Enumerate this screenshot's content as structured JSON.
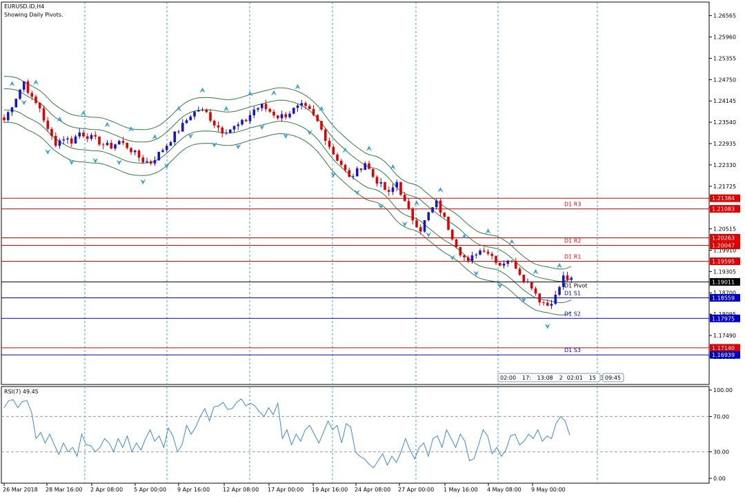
{
  "header": {
    "title": "EURUSD.ID,H4",
    "subtitle": "Showing Daily Pivots."
  },
  "colors": {
    "bull": "#1414d2",
    "bear": "#e00000",
    "band": "#2e7d3a",
    "signal": "#3aa0e0",
    "rsi": "#3b88d8",
    "resistance": "#e00000",
    "support": "#0000c8",
    "pivot": "#000000"
  },
  "chart_data": [
    {
      "type": "candlestick",
      "title": "EURUSD.ID,H4",
      "subtitle": "Showing Daily Pivots.",
      "ylim": [
        1.161,
        1.2695
      ],
      "y_ticks": [
        "1.26565",
        "1.25960",
        "1.25355",
        "1.24750",
        "1.24145",
        "1.23540",
        "1.22935",
        "1.22330",
        "1.21725",
        "1.21125",
        "1.20515",
        "1.19910",
        "1.19305",
        "1.18700",
        "1.18095",
        "1.17490",
        "1.16885"
      ],
      "x_ticks": [
        "26 Mar 2018",
        "28 Mar 16:00",
        "2 Apr 08:00",
        "5 Apr 00:00",
        "9 Apr 16:00",
        "12 Apr 08:00",
        "17 Apr 00:00",
        "19 Apr 16:00",
        "24 Apr 08:00",
        "27 Apr 00:00",
        "1 May 16:00",
        "4 May 08:00",
        "9 May 00:00"
      ],
      "close_path": [
        [
          0,
          1.236
        ],
        [
          3,
          1.2425
        ],
        [
          5,
          1.247
        ],
        [
          7,
          1.242
        ],
        [
          9,
          1.2395
        ],
        [
          11,
          1.233
        ],
        [
          13,
          1.2295
        ],
        [
          15,
          1.231
        ],
        [
          17,
          1.23
        ],
        [
          19,
          1.2325
        ],
        [
          21,
          1.2315
        ],
        [
          23,
          1.2305
        ],
        [
          25,
          1.229
        ],
        [
          27,
          1.2285
        ],
        [
          29,
          1.23
        ],
        [
          31,
          1.2285
        ],
        [
          33,
          1.2265
        ],
        [
          35,
          1.2245
        ],
        [
          37,
          1.224
        ],
        [
          39,
          1.2265
        ],
        [
          41,
          1.229
        ],
        [
          43,
          1.232
        ],
        [
          45,
          1.2345
        ],
        [
          47,
          1.2375
        ],
        [
          49,
          1.239
        ],
        [
          51,
          1.238
        ],
        [
          53,
          1.235
        ],
        [
          55,
          1.233
        ],
        [
          57,
          1.2335
        ],
        [
          59,
          1.2345
        ],
        [
          61,
          1.236
        ],
        [
          63,
          1.239
        ],
        [
          65,
          1.24
        ],
        [
          67,
          1.2385
        ],
        [
          69,
          1.237
        ],
        [
          71,
          1.2375
        ],
        [
          73,
          1.239
        ],
        [
          75,
          1.24
        ],
        [
          77,
          1.2385
        ],
        [
          79,
          1.2355
        ],
        [
          81,
          1.231
        ],
        [
          83,
          1.2265
        ],
        [
          85,
          1.2235
        ],
        [
          87,
          1.2195
        ],
        [
          89,
          1.2215
        ],
        [
          91,
          1.224
        ],
        [
          93,
          1.22
        ],
        [
          95,
          1.2175
        ],
        [
          97,
          1.215
        ],
        [
          99,
          1.2185
        ],
        [
          101,
          1.2125
        ],
        [
          103,
          1.208
        ],
        [
          105,
          1.205
        ],
        [
          107,
          1.2095
        ],
        [
          109,
          1.2125
        ],
        [
          111,
          1.208
        ],
        [
          113,
          1.203
        ],
        [
          115,
          1.1985
        ],
        [
          117,
          1.1955
        ],
        [
          119,
          1.1985
        ],
        [
          121,
          1.1995
        ],
        [
          123,
          1.1975
        ],
        [
          125,
          1.195
        ],
        [
          127,
          1.1965
        ],
        [
          129,
          1.1945
        ],
        [
          131,
          1.191
        ],
        [
          133,
          1.189
        ],
        [
          135,
          1.185
        ],
        [
          137,
          1.1835
        ],
        [
          139,
          1.186
        ],
        [
          141,
          1.1915
        ],
        [
          143,
          1.1905
        ]
      ]
    },
    {
      "type": "pivot_levels",
      "levels": [
        {
          "name": "D1 R3",
          "value": 1.21083,
          "price_label": "1.21083",
          "kind": "resistance"
        },
        {
          "name": "D1 R2",
          "value": 1.20047,
          "price_label": "1.20047",
          "kind": "resistance"
        },
        {
          "name": "D1 R1",
          "value": 1.19595,
          "price_label": "1.19595",
          "kind": "resistance"
        },
        {
          "name": "D1 Pivot",
          "value": 1.19011,
          "price_label": "1.19011",
          "kind": "pivot"
        },
        {
          "name": "D1 S1",
          "value": 1.18559,
          "price_label": "1.18559",
          "kind": "support"
        },
        {
          "name": "D1 S2",
          "value": 1.17975,
          "price_label": "1.17975",
          "kind": "support"
        },
        {
          "name": "D1 S3",
          "value": 1.16939,
          "price_label": "1.16939",
          "kind": "support"
        }
      ],
      "extra_lines": [
        {
          "value": 1.21384,
          "price_label": "1.21384",
          "kind": "resistance"
        },
        {
          "value": 1.20263,
          "price_label": "1.20263",
          "kind": "resistance"
        },
        {
          "value": 1.1714,
          "price_label": "1.17140",
          "kind": "resistance"
        }
      ]
    },
    {
      "type": "line",
      "title": "RSI(7) 49.45",
      "ylim": [
        0,
        100
      ],
      "y_ticks": [
        "100.00",
        "70.00",
        "30.00",
        "0.00"
      ],
      "levels": [
        70,
        30
      ],
      "series": [
        {
          "name": "RSI(7)",
          "x_step": 2,
          "values": [
            80,
            88,
            89,
            80,
            87,
            88,
            75,
            45,
            52,
            40,
            50,
            38,
            27,
            40,
            30,
            35,
            25,
            50,
            38,
            37,
            30,
            35,
            45,
            40,
            30,
            45,
            35,
            48,
            30,
            40,
            32,
            45,
            55,
            42,
            48,
            35,
            57,
            48,
            30,
            38,
            60,
            50,
            58,
            70,
            79,
            65,
            81,
            82,
            86,
            78,
            79,
            86,
            90,
            82,
            85,
            82,
            75,
            70,
            80,
            72,
            85,
            45,
            55,
            38,
            50,
            42,
            55,
            60,
            50,
            40,
            52,
            65,
            55,
            60,
            40,
            62,
            58,
            30,
            25,
            22,
            16,
            12,
            20,
            28,
            15,
            25,
            18,
            30,
            45,
            32,
            22,
            35,
            40,
            25,
            45,
            48,
            35,
            55,
            45,
            35,
            50,
            42,
            20,
            22,
            38,
            55,
            48,
            28,
            35,
            25,
            32,
            48,
            50,
            38,
            42,
            50,
            45,
            55,
            42,
            48,
            45,
            62,
            70,
            65,
            49
          ]
        }
      ]
    }
  ],
  "time_bar": {
    "segments": [
      "02:00",
      "17:",
      "13:08",
      "2",
      "02:01",
      "15",
      "3"
    ],
    "right": "09:45"
  }
}
